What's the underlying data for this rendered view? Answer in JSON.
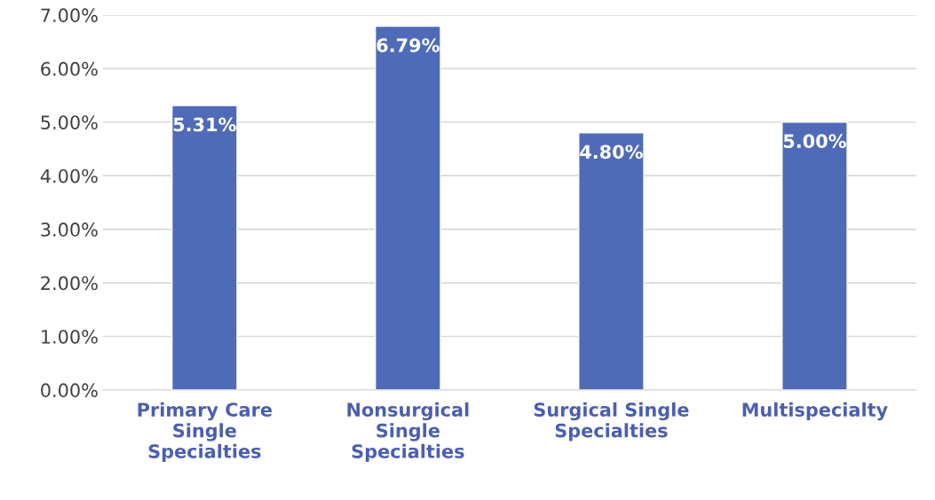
{
  "chart_data": {
    "type": "bar",
    "categories": [
      "Primary Care\nSingle\nSpecialties",
      "Nonsurgical\nSingle\nSpecialties",
      "Surgical Single\nSpecialties",
      "Multispecialty"
    ],
    "values": [
      5.31,
      6.79,
      4.8,
      5.0
    ],
    "value_labels": [
      "5.31%",
      "6.79%",
      "4.80%",
      "5.00%"
    ],
    "color": "#4f6bb8",
    "ylim": [
      0,
      7
    ],
    "yticks": [
      {
        "value": 0,
        "label": "0.00%"
      },
      {
        "value": 1,
        "label": "1.00%"
      },
      {
        "value": 2,
        "label": "2.00%"
      },
      {
        "value": 3,
        "label": "3.00%"
      },
      {
        "value": 4,
        "label": "4.00%"
      },
      {
        "value": 5,
        "label": "5.00%"
      },
      {
        "value": 6,
        "label": "6.00%"
      },
      {
        "value": 7,
        "label": "7.00%"
      }
    ],
    "grid": "y"
  }
}
